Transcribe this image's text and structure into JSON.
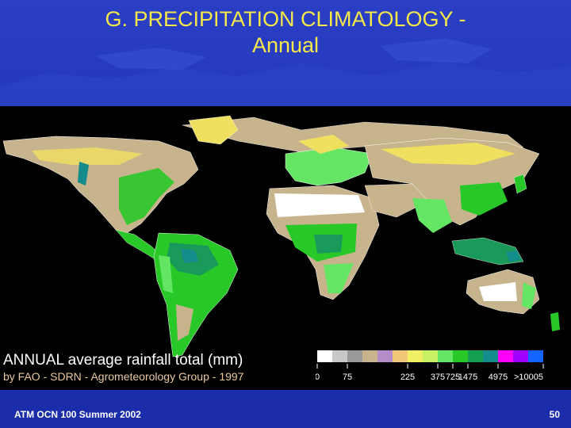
{
  "slide": {
    "title_line1": "G. PRECIPITATION CLIMATOLOGY -",
    "title_line2": "Annual",
    "footer_left": "ATM OCN 100 Summer 2002",
    "page_number": "50"
  },
  "map": {
    "caption_main": "ANNUAL average rainfall total (mm)",
    "caption_sub": "by FAO - SDRN - Agrometeorology Group - 1997",
    "legend": {
      "colors": [
        "#ffffff",
        "#c8c8c8",
        "#9a9a9a",
        "#c8b48c",
        "#b48cc8",
        "#f0c878",
        "#f0f064",
        "#c8f064",
        "#64e664",
        "#28c828",
        "#14a050",
        "#148c8c",
        "#ff00ff",
        "#a000ff",
        "#1464ff"
      ],
      "tick_labels": [
        "0",
        "75",
        "225",
        "375",
        "725",
        "1475",
        "4975",
        ">10005"
      ]
    },
    "palette": {
      "ocean": "#000000",
      "desert": "#ffffff",
      "dry": "#c8b48c",
      "semi": "#f0e060",
      "moist": "#64e664",
      "wet": "#28c828",
      "very_wet": "#1a9a5a",
      "extreme": "#148c8c"
    }
  }
}
